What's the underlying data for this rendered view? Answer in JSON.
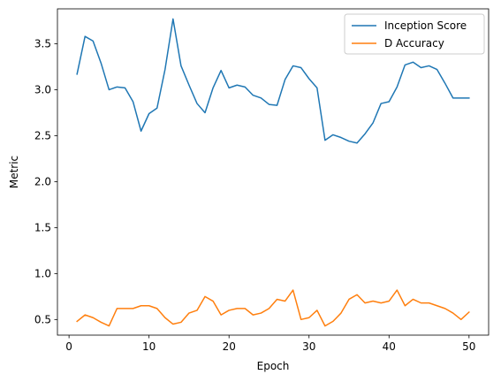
{
  "chart_data": {
    "type": "line",
    "title": "",
    "xlabel": "Epoch",
    "ylabel": "Metric",
    "xlim": [
      -1.45,
      52.45
    ],
    "ylim": [
      0.33,
      3.88
    ],
    "xticks": [
      0,
      10,
      20,
      30,
      40,
      50
    ],
    "yticks": [
      0.5,
      1.0,
      1.5,
      2.0,
      2.5,
      3.0,
      3.5
    ],
    "grid": false,
    "legend_position": "top-right",
    "x": [
      1,
      2,
      3,
      4,
      5,
      6,
      7,
      8,
      9,
      10,
      11,
      12,
      13,
      14,
      15,
      16,
      17,
      18,
      19,
      20,
      21,
      22,
      23,
      24,
      25,
      26,
      27,
      28,
      29,
      30,
      31,
      32,
      33,
      34,
      35,
      36,
      37,
      38,
      39,
      40,
      41,
      42,
      43,
      44,
      45,
      46,
      47,
      48,
      49,
      50
    ],
    "series": [
      {
        "name": "Inception Score",
        "color": "#1f77b4",
        "values": [
          3.17,
          3.58,
          3.53,
          3.29,
          3.0,
          3.03,
          3.02,
          2.87,
          2.55,
          2.74,
          2.8,
          3.22,
          3.77,
          3.26,
          3.05,
          2.85,
          2.75,
          3.02,
          3.21,
          3.02,
          3.05,
          3.03,
          2.94,
          2.91,
          2.84,
          2.83,
          3.11,
          3.26,
          3.24,
          3.12,
          3.02,
          2.45,
          2.51,
          2.48,
          2.44,
          2.42,
          2.52,
          2.64,
          2.85,
          2.87,
          3.03,
          3.27,
          3.3,
          3.24,
          3.26,
          3.22,
          3.07,
          2.91,
          2.91,
          2.91
        ]
      },
      {
        "name": "D Accuracy",
        "color": "#ff7f0e",
        "values": [
          0.48,
          0.55,
          0.52,
          0.47,
          0.43,
          0.62,
          0.62,
          0.62,
          0.65,
          0.65,
          0.62,
          0.52,
          0.45,
          0.47,
          0.57,
          0.6,
          0.75,
          0.7,
          0.55,
          0.6,
          0.62,
          0.62,
          0.55,
          0.57,
          0.62,
          0.72,
          0.7,
          0.82,
          0.5,
          0.52,
          0.6,
          0.43,
          0.48,
          0.57,
          0.72,
          0.77,
          0.68,
          0.7,
          0.68,
          0.7,
          0.82,
          0.65,
          0.72,
          0.68,
          0.68,
          0.65,
          0.62,
          0.57,
          0.5,
          0.58
        ]
      }
    ]
  }
}
